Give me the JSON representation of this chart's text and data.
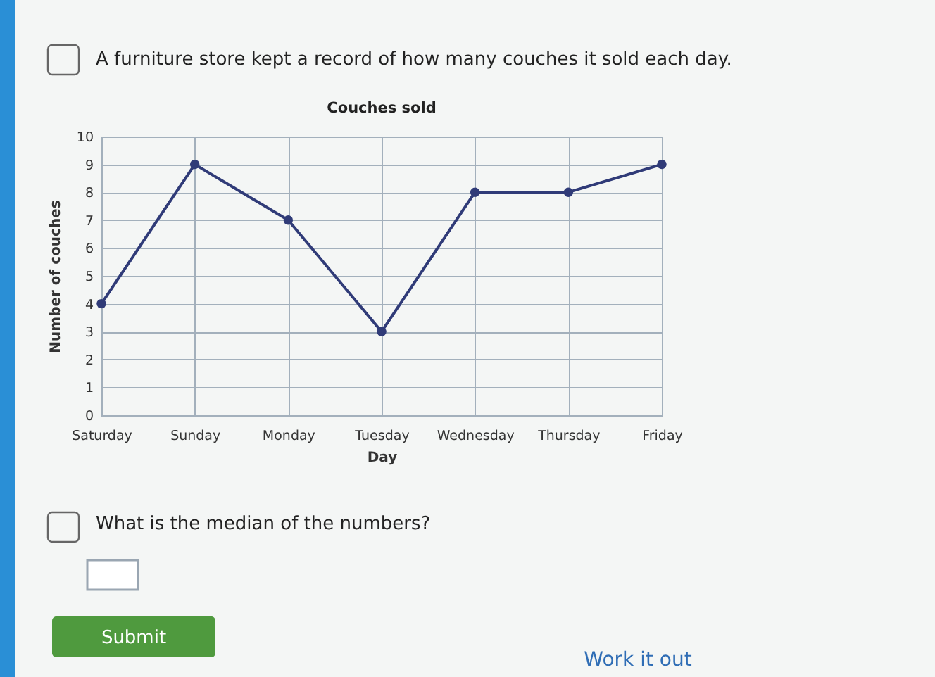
{
  "chart_data": {
    "type": "line",
    "title": "Couches sold",
    "xlabel": "Day",
    "ylabel": "Number of couches",
    "categories": [
      "Saturday",
      "Sunday",
      "Monday",
      "Tuesday",
      "Wednesday",
      "Thursday",
      "Friday"
    ],
    "series": [
      {
        "color": "#303b78",
        "values": [
          4,
          9,
          7,
          3,
          8,
          8,
          9
        ]
      }
    ],
    "ylim": [
      0,
      10
    ],
    "yticks": [
      0,
      1,
      2,
      3,
      4,
      5,
      6,
      7,
      8,
      9,
      10
    ],
    "grid": true,
    "marker": "circle",
    "line_style": "solid",
    "annotations": [
      "A furniture store kept a record of how many couches it sold each day.",
      "What is the median of the numbers?",
      "Submit",
      "Work it out"
    ]
  }
}
